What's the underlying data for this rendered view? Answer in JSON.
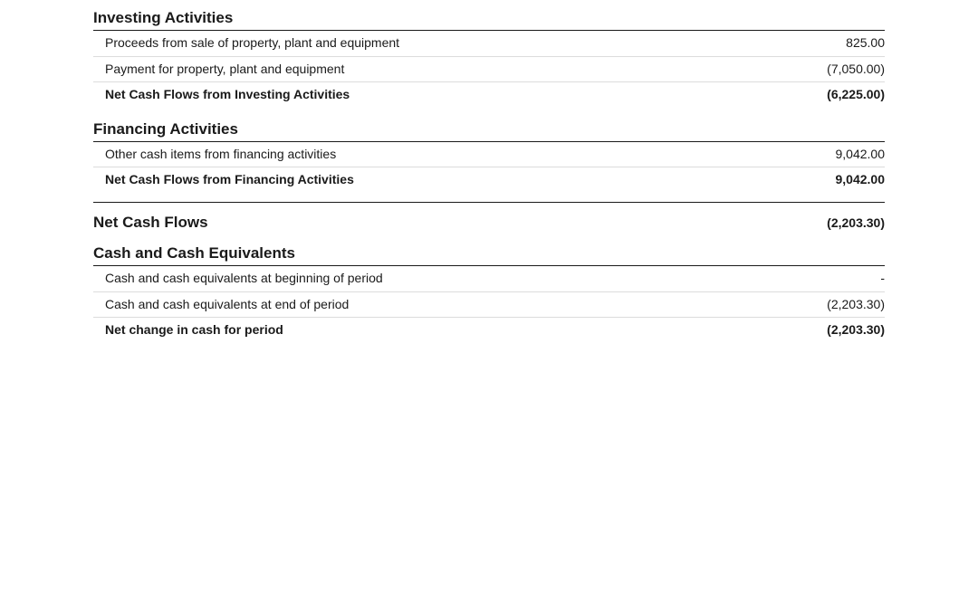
{
  "investing": {
    "header": "Investing Activities",
    "rows": [
      {
        "label": "Proceeds from sale of property, plant and equipment",
        "value": "825.00"
      },
      {
        "label": "Payment for property, plant and equipment",
        "value": "(7,050.00)"
      }
    ],
    "subtotal": {
      "label": "Net Cash Flows from Investing Activities",
      "value": "(6,225.00)"
    }
  },
  "financing": {
    "header": "Financing Activities",
    "rows": [
      {
        "label": "Other cash items from financing activities",
        "value": "9,042.00"
      }
    ],
    "subtotal": {
      "label": "Net Cash Flows from Financing Activities",
      "value": "9,042.00"
    }
  },
  "netcashflows": {
    "label": "Net Cash Flows",
    "value": "(2,203.30)"
  },
  "cashequiv": {
    "header": "Cash and Cash Equivalents",
    "rows": [
      {
        "label": "Cash and cash equivalents at beginning of period",
        "value": "-"
      },
      {
        "label": "Cash and cash equivalents at end of period",
        "value": "(2,203.30)"
      }
    ],
    "subtotal": {
      "label": "Net change in cash for period",
      "value": "(2,203.30)"
    }
  }
}
